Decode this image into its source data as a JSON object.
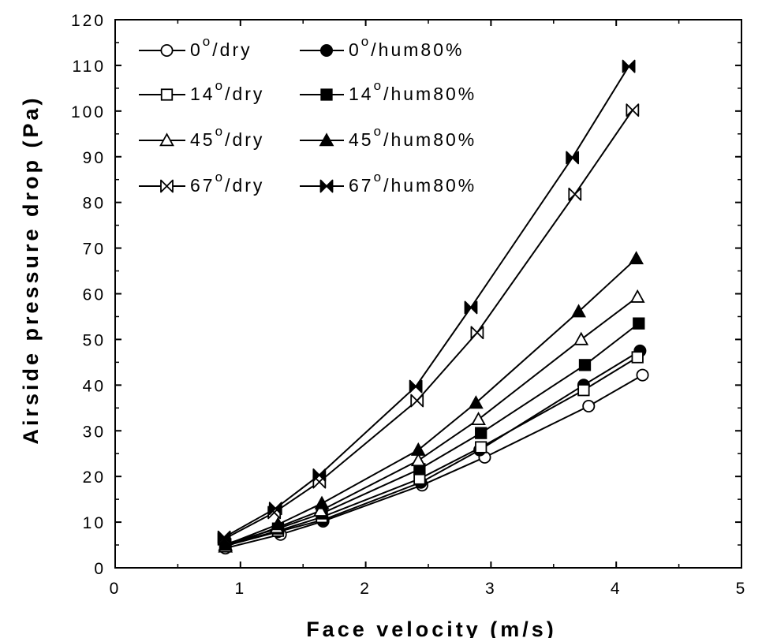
{
  "chart_data": {
    "type": "line",
    "xlabel": "Face velocity (m/s)",
    "ylabel": "Airside pressure drop (Pa)",
    "xlim": [
      0,
      5
    ],
    "ylim": [
      0,
      120
    ],
    "xticks": [
      "0",
      "1",
      "2",
      "3",
      "4",
      "5"
    ],
    "yticks": [
      "0",
      "10",
      "20",
      "30",
      "40",
      "50",
      "60",
      "70",
      "80",
      "90",
      "100",
      "110",
      "120"
    ],
    "grid": false,
    "legend_position": "top-left",
    "series": [
      {
        "name": "0°/dry",
        "angle": "0",
        "suffix": "/dry",
        "marker": "circle",
        "filled": false,
        "x": [
          0.88,
          1.32,
          1.66,
          2.45,
          2.95,
          3.78,
          4.21
        ],
        "y": [
          4.3,
          7.3,
          10.2,
          18.1,
          24.2,
          35.4,
          42.2
        ]
      },
      {
        "name": "0°/hum80%",
        "angle": "0",
        "suffix": "/hum80%",
        "marker": "circle",
        "filled": true,
        "x": [
          0.88,
          1.3,
          1.66,
          2.44,
          2.91,
          3.74,
          4.19
        ],
        "y": [
          4.8,
          7.9,
          10.5,
          18.7,
          25.8,
          40.0,
          47.5
        ]
      },
      {
        "name": "14°/dry",
        "angle": "14",
        "suffix": "/dry",
        "marker": "square",
        "filled": false,
        "x": [
          0.88,
          1.3,
          1.65,
          2.43,
          2.92,
          3.74,
          4.17
        ],
        "y": [
          4.9,
          8.1,
          11.1,
          19.5,
          26.4,
          38.9,
          46.1
        ]
      },
      {
        "name": "14°/hum80%",
        "angle": "14",
        "suffix": "/hum80%",
        "marker": "square",
        "filled": true,
        "x": [
          0.88,
          1.3,
          1.65,
          2.43,
          2.92,
          3.75,
          4.18
        ],
        "y": [
          5.2,
          8.6,
          11.9,
          21.6,
          29.5,
          44.4,
          53.5
        ]
      },
      {
        "name": "45°/dry",
        "angle": "45",
        "suffix": "/dry",
        "marker": "triangle",
        "filled": false,
        "x": [
          0.88,
          1.29,
          1.64,
          2.42,
          2.9,
          3.72,
          4.17
        ],
        "y": [
          4.6,
          8.8,
          12.5,
          23.5,
          32.5,
          50.0,
          59.3
        ]
      },
      {
        "name": "45°/hum80%",
        "angle": "45",
        "suffix": "/hum80%",
        "marker": "triangle",
        "filled": true,
        "x": [
          0.88,
          1.3,
          1.65,
          2.42,
          2.88,
          3.7,
          4.16
        ],
        "y": [
          5.0,
          9.5,
          14.1,
          25.8,
          36.1,
          56.1,
          67.7
        ]
      },
      {
        "name": "67°/dry",
        "angle": "67",
        "suffix": "/dry",
        "marker": "bowtie",
        "filled": false,
        "x": [
          0.87,
          1.27,
          1.63,
          2.41,
          2.89,
          3.67,
          4.13
        ],
        "y": [
          6.3,
          12.1,
          18.8,
          36.6,
          51.5,
          81.8,
          100.2
        ]
      },
      {
        "name": "67°/hum80%",
        "angle": "67",
        "suffix": "/hum80%",
        "marker": "bowtie",
        "filled": true,
        "x": [
          0.87,
          1.28,
          1.63,
          2.4,
          2.84,
          3.65,
          4.1
        ],
        "y": [
          6.7,
          13.0,
          20.3,
          39.7,
          57.0,
          89.8,
          109.8
        ]
      }
    ]
  }
}
